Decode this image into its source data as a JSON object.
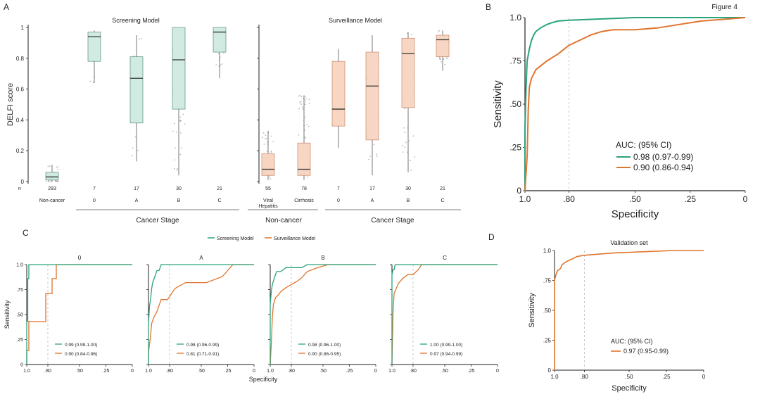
{
  "figure_label": "Figure 4",
  "colors": {
    "screening": "#2aa37f",
    "surveillance": "#e0742c",
    "screening_fill": "#cde9df",
    "surveillance_fill": "#f7d3bd"
  },
  "chart_data": [
    {
      "panel": "A",
      "type": "box",
      "ylabel": "DELFI score",
      "yticks": [
        "0",
        "0.2",
        "0.4",
        "0.6",
        "0.8",
        "1"
      ],
      "ylim": [
        0,
        1
      ],
      "n_label": "n",
      "stage_label": "Cancer Stage",
      "noncancer_label": "Non-cancer",
      "groups": [
        {
          "title": "Screening Model",
          "color_key": "screening",
          "categories": [
            "Non-cancer",
            "0",
            "A",
            "B",
            "C"
          ],
          "n": [
            "293",
            "7",
            "17",
            "30",
            "21"
          ],
          "boxes": [
            {
              "min": 0.0,
              "q1": 0.01,
              "median": 0.03,
              "q3": 0.06,
              "max": 0.11
            },
            {
              "min": 0.64,
              "q1": 0.78,
              "median": 0.94,
              "q3": 0.97,
              "max": 0.98
            },
            {
              "min": 0.13,
              "q1": 0.38,
              "median": 0.67,
              "q3": 0.81,
              "max": 0.95
            },
            {
              "min": 0.04,
              "q1": 0.47,
              "median": 0.79,
              "q3": 1.0,
              "max": 1.0
            },
            {
              "min": 0.67,
              "q1": 0.84,
              "median": 0.97,
              "q3": 1.0,
              "max": 1.0
            }
          ]
        },
        {
          "title": "Surveillance Model",
          "color_key": "surveillance",
          "categories": [
            "Viral Hepatitis",
            "Cirrhosis",
            "0",
            "A",
            "B",
            "C"
          ],
          "n": [
            "55",
            "78",
            "7",
            "17",
            "30",
            "21"
          ],
          "boxes": [
            {
              "min": 0.01,
              "q1": 0.04,
              "median": 0.08,
              "q3": 0.18,
              "max": 0.33
            },
            {
              "min": 0.01,
              "q1": 0.04,
              "median": 0.08,
              "q3": 0.25,
              "max": 0.56
            },
            {
              "min": 0.22,
              "q1": 0.36,
              "median": 0.47,
              "q3": 0.78,
              "max": 0.86
            },
            {
              "min": 0.04,
              "q1": 0.27,
              "median": 0.62,
              "q3": 0.84,
              "max": 0.95
            },
            {
              "min": 0.06,
              "q1": 0.48,
              "median": 0.83,
              "q3": 0.93,
              "max": 0.97
            },
            {
              "min": 0.72,
              "q1": 0.81,
              "median": 0.92,
              "q3": 0.95,
              "max": 0.98
            }
          ]
        }
      ]
    },
    {
      "panel": "B",
      "type": "line",
      "xlabel": "Specificity",
      "ylabel": "Sensitivity",
      "xticks": [
        "1.0",
        ".80",
        ".50",
        ".25",
        "0"
      ],
      "yticks": [
        "0",
        ".25",
        ".50",
        ".75",
        "1.0"
      ],
      "xlim": [
        1,
        0
      ],
      "ylim": [
        0,
        1
      ],
      "ref_specificity": 0.8,
      "legend_title": "AUC: (95% CI)",
      "series": [
        {
          "name": "Screening Model",
          "label": "0.98 (0.97-0.99)",
          "color_key": "screening",
          "x": [
            1.0,
            1.0,
            0.995,
            0.99,
            0.98,
            0.97,
            0.96,
            0.95,
            0.93,
            0.9,
            0.88,
            0.85,
            0.8,
            0.7,
            0.5,
            0.3,
            0.15,
            0.0
          ],
          "y": [
            0.0,
            0.35,
            0.6,
            0.75,
            0.82,
            0.87,
            0.9,
            0.92,
            0.94,
            0.96,
            0.97,
            0.98,
            0.985,
            0.99,
            1.0,
            1.0,
            1.0,
            1.0
          ]
        },
        {
          "name": "Surveillance Model",
          "label": "0.90 (0.86-0.94)",
          "color_key": "surveillance",
          "x": [
            1.0,
            0.99,
            0.985,
            0.98,
            0.97,
            0.95,
            0.93,
            0.9,
            0.85,
            0.8,
            0.75,
            0.7,
            0.65,
            0.6,
            0.5,
            0.4,
            0.3,
            0.2,
            0.1,
            0.0
          ],
          "y": [
            0.0,
            0.2,
            0.47,
            0.6,
            0.65,
            0.7,
            0.72,
            0.75,
            0.79,
            0.84,
            0.87,
            0.9,
            0.92,
            0.93,
            0.93,
            0.94,
            0.96,
            0.98,
            0.99,
            1.0
          ]
        }
      ]
    },
    {
      "panel": "C",
      "type": "line",
      "xlabel": "Specificity",
      "ylabel": "Sensitivity",
      "xticks": [
        "1.0",
        ".80",
        ".50",
        ".25",
        "0"
      ],
      "yticks": [
        "0",
        ".25",
        ".50",
        ".75",
        "1.0"
      ],
      "legend": [
        "Screening Model",
        "Surveillance Model"
      ],
      "facets": [
        {
          "title": "0",
          "screening": {
            "label": "0.99 (0.99-1.00)",
            "x": [
              1.0,
              1.0,
              0.99,
              0.99,
              0.98,
              0.98,
              0.0
            ],
            "y": [
              0.0,
              0.43,
              0.43,
              0.86,
              0.86,
              1.0,
              1.0
            ]
          },
          "surveillance": {
            "label": "0.90 (0.84-0.96)",
            "x": [
              1.0,
              1.0,
              0.98,
              0.98,
              0.82,
              0.82,
              0.76,
              0.76,
              0.72,
              0.72,
              0.0
            ],
            "y": [
              0.0,
              0.14,
              0.14,
              0.43,
              0.43,
              0.71,
              0.71,
              0.86,
              0.86,
              1.0,
              1.0
            ]
          }
        },
        {
          "title": "A",
          "screening": {
            "label": "0.98 (0.96-0.99)",
            "x": [
              1.0,
              1.0,
              0.99,
              0.98,
              0.97,
              0.96,
              0.94,
              0.92,
              0.9,
              0.88,
              0.0
            ],
            "y": [
              0.0,
              0.41,
              0.59,
              0.65,
              0.76,
              0.82,
              0.88,
              0.94,
              0.94,
              1.0,
              1.0
            ]
          },
          "surveillance": {
            "label": "0.81 (0.71-0.91)",
            "x": [
              1.0,
              1.0,
              0.98,
              0.97,
              0.95,
              0.92,
              0.88,
              0.82,
              0.75,
              0.65,
              0.45,
              0.3,
              0.25,
              0.2,
              0.1,
              0.0
            ],
            "y": [
              0.0,
              0.12,
              0.29,
              0.41,
              0.47,
              0.53,
              0.65,
              0.65,
              0.76,
              0.82,
              0.82,
              0.88,
              0.94,
              1.0,
              1.0,
              1.0
            ]
          }
        },
        {
          "title": "B",
          "screening": {
            "label": "0.98 (0.96-1.00)",
            "x": [
              1.0,
              1.0,
              0.99,
              0.98,
              0.96,
              0.94,
              0.9,
              0.85,
              0.8,
              0.7,
              0.65,
              0.0
            ],
            "y": [
              0.0,
              0.6,
              0.73,
              0.8,
              0.87,
              0.93,
              0.93,
              0.97,
              0.97,
              0.97,
              1.0,
              1.0
            ]
          },
          "surveillance": {
            "label": "0.90 (0.86-0.95)",
            "x": [
              1.0,
              0.99,
              0.98,
              0.97,
              0.95,
              0.92,
              0.9,
              0.85,
              0.8,
              0.75,
              0.7,
              0.65,
              0.55,
              0.45,
              0.0
            ],
            "y": [
              0.0,
              0.2,
              0.47,
              0.6,
              0.67,
              0.7,
              0.73,
              0.77,
              0.8,
              0.83,
              0.87,
              0.93,
              0.97,
              1.0,
              1.0
            ]
          }
        },
        {
          "title": "C",
          "screening": {
            "label": "1.00 (0.99-1.00)",
            "x": [
              1.0,
              1.0,
              0.99,
              0.98,
              0.97,
              0.0
            ],
            "y": [
              0.0,
              0.9,
              0.95,
              0.95,
              1.0,
              1.0
            ]
          },
          "surveillance": {
            "label": "0.97 (0.94-0.99)",
            "x": [
              1.0,
              0.99,
              0.98,
              0.96,
              0.94,
              0.9,
              0.85,
              0.8,
              0.75,
              0.72,
              0.0
            ],
            "y": [
              0.0,
              0.52,
              0.71,
              0.76,
              0.81,
              0.86,
              0.9,
              0.9,
              0.95,
              1.0,
              1.0
            ]
          }
        }
      ]
    },
    {
      "panel": "D",
      "type": "line",
      "title": "Validation set",
      "xlabel": "Specificity",
      "ylabel": "Sensitivity",
      "xticks": [
        "1.0",
        ".80",
        ".50",
        ".25",
        "0"
      ],
      "yticks": [
        "0",
        ".25",
        ".50",
        ".75",
        "1.0"
      ],
      "legend_title": "AUC: (95% CI)",
      "series": [
        {
          "name": "Surveillance Model",
          "label": "0.97 (0.95-0.99)",
          "color_key": "surveillance",
          "x": [
            1.0,
            1.0,
            0.99,
            0.98,
            0.96,
            0.95,
            0.93,
            0.9,
            0.88,
            0.85,
            0.8,
            0.7,
            0.6,
            0.4,
            0.2,
            0.0
          ],
          "y": [
            0.0,
            0.75,
            0.8,
            0.83,
            0.85,
            0.88,
            0.9,
            0.92,
            0.93,
            0.95,
            0.96,
            0.97,
            0.98,
            0.99,
            1.0,
            1.0
          ]
        }
      ]
    }
  ]
}
